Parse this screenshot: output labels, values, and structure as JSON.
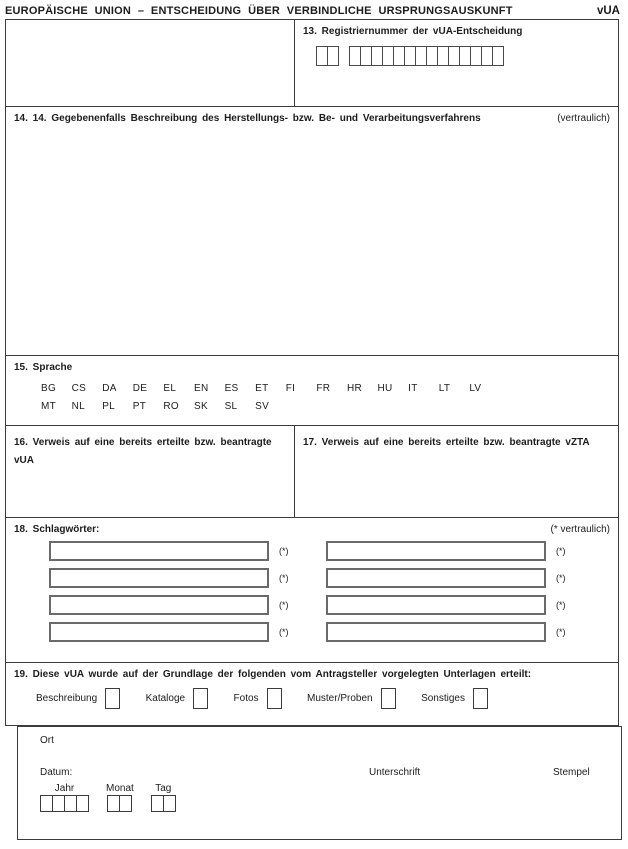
{
  "title": {
    "main": "EUROPÄISCHE UNION – ENTSCHEIDUNG ÜBER VERBINDLICHE URSPRUNGSAUSKUNFT",
    "code": "vUA"
  },
  "box13": {
    "label": "13. Registriernummer der vUA-Entscheidung",
    "group1_cells": 2,
    "group2_cells": 14
  },
  "box14": {
    "label": "14. 14. Gegebenenfalls Beschreibung des Herstellungs- bzw. Be- und Verarbeitungsverfahrens",
    "note": "(vertraulich)"
  },
  "box15": {
    "label": "15. Sprache",
    "languages_row1": [
      "BG",
      "CS",
      "DA",
      "DE",
      "EL",
      "EN",
      "ES",
      "ET",
      "FI",
      "FR",
      "HR",
      "HU",
      "IT",
      "LT",
      "LV"
    ],
    "languages_row2": [
      "MT",
      "NL",
      "PL",
      "PT",
      "RO",
      "SK",
      "SL",
      "SV"
    ]
  },
  "box16": {
    "label": "16. Verweis auf eine bereits erteilte bzw. beantragte vUA"
  },
  "box17": {
    "label": "17. Verweis auf eine bereits erteilte bzw. beantragte vZTA"
  },
  "box18": {
    "label": "18. Schlagwörter:",
    "note": "(* vertraulich)",
    "field_marker": "(*)",
    "row_count": 4
  },
  "box19": {
    "label": "19. Diese vUA wurde auf der Grundlage der folgenden vom Antragsteller vorgelegten Unterlagen erteilt:",
    "documents": [
      "Beschreibung",
      "Kataloge",
      "Fotos",
      "Muster/Proben",
      "Sonstiges"
    ]
  },
  "footer": {
    "ort_label": "Ort",
    "datum_label": "Datum:",
    "unterschrift_label": "Unterschrift",
    "stempel_label": "Stempel",
    "jahr_label": "Jahr",
    "monat_label": "Monat",
    "tag_label": "Tag",
    "jahr_cells": 4,
    "monat_cells": 2,
    "tag_cells": 2
  }
}
